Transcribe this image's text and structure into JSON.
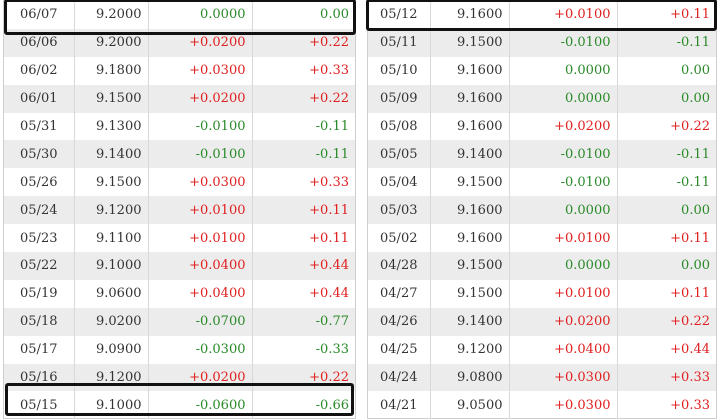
{
  "left_rows": [
    {
      "date": "06/07",
      "price": "9.2000",
      "change": "0.0000",
      "pct": "0.00",
      "dir": "zero"
    },
    {
      "date": "06/06",
      "price": "9.2000",
      "change": "+0.0200",
      "pct": "+0.22",
      "dir": "pos"
    },
    {
      "date": "06/02",
      "price": "9.1800",
      "change": "+0.0300",
      "pct": "+0.33",
      "dir": "pos"
    },
    {
      "date": "06/01",
      "price": "9.1500",
      "change": "+0.0200",
      "pct": "+0.22",
      "dir": "pos"
    },
    {
      "date": "05/31",
      "price": "9.1300",
      "change": "-0.0100",
      "pct": "-0.11",
      "dir": "neg"
    },
    {
      "date": "05/30",
      "price": "9.1400",
      "change": "-0.0100",
      "pct": "-0.11",
      "dir": "neg"
    },
    {
      "date": "05/26",
      "price": "9.1500",
      "change": "+0.0300",
      "pct": "+0.33",
      "dir": "pos"
    },
    {
      "date": "05/24",
      "price": "9.1200",
      "change": "+0.0100",
      "pct": "+0.11",
      "dir": "pos"
    },
    {
      "date": "05/23",
      "price": "9.1100",
      "change": "+0.0100",
      "pct": "+0.11",
      "dir": "pos"
    },
    {
      "date": "05/22",
      "price": "9.1000",
      "change": "+0.0400",
      "pct": "+0.44",
      "dir": "pos"
    },
    {
      "date": "05/19",
      "price": "9.0600",
      "change": "+0.0400",
      "pct": "+0.44",
      "dir": "pos"
    },
    {
      "date": "05/18",
      "price": "9.0200",
      "change": "-0.0700",
      "pct": "-0.77",
      "dir": "neg"
    },
    {
      "date": "05/17",
      "price": "9.0900",
      "change": "-0.0300",
      "pct": "-0.33",
      "dir": "neg"
    },
    {
      "date": "05/16",
      "price": "9.1200",
      "change": "+0.0200",
      "pct": "+0.22",
      "dir": "pos"
    },
    {
      "date": "05/15",
      "price": "9.1000",
      "change": "-0.0600",
      "pct": "-0.66",
      "dir": "neg"
    }
  ],
  "right_rows": [
    {
      "date": "05/12",
      "price": "9.1600",
      "change": "+0.0100",
      "pct": "+0.11",
      "dir": "pos"
    },
    {
      "date": "05/11",
      "price": "9.1500",
      "change": "-0.0100",
      "pct": "-0.11",
      "dir": "neg"
    },
    {
      "date": "05/10",
      "price": "9.1600",
      "change": "0.0000",
      "pct": "0.00",
      "dir": "zero"
    },
    {
      "date": "05/09",
      "price": "9.1600",
      "change": "0.0000",
      "pct": "0.00",
      "dir": "zero"
    },
    {
      "date": "05/08",
      "price": "9.1600",
      "change": "+0.0200",
      "pct": "+0.22",
      "dir": "pos"
    },
    {
      "date": "05/05",
      "price": "9.1400",
      "change": "-0.0100",
      "pct": "-0.11",
      "dir": "neg"
    },
    {
      "date": "05/04",
      "price": "9.1500",
      "change": "-0.0100",
      "pct": "-0.11",
      "dir": "neg"
    },
    {
      "date": "05/03",
      "price": "9.1600",
      "change": "0.0000",
      "pct": "0.00",
      "dir": "zero"
    },
    {
      "date": "05/02",
      "price": "9.1600",
      "change": "+0.0100",
      "pct": "+0.11",
      "dir": "pos"
    },
    {
      "date": "04/28",
      "price": "9.1500",
      "change": "0.0000",
      "pct": "0.00",
      "dir": "zero"
    },
    {
      "date": "04/27",
      "price": "9.1500",
      "change": "+0.0100",
      "pct": "+0.11",
      "dir": "pos"
    },
    {
      "date": "04/26",
      "price": "9.1400",
      "change": "+0.0200",
      "pct": "+0.22",
      "dir": "pos"
    },
    {
      "date": "04/25",
      "price": "9.1200",
      "change": "+0.0400",
      "pct": "+0.44",
      "dir": "pos"
    },
    {
      "date": "04/24",
      "price": "9.0800",
      "change": "+0.0300",
      "pct": "+0.33",
      "dir": "pos"
    },
    {
      "date": "04/21",
      "price": "9.0500",
      "change": "+0.0300",
      "pct": "+0.33",
      "dir": "pos"
    }
  ]
}
